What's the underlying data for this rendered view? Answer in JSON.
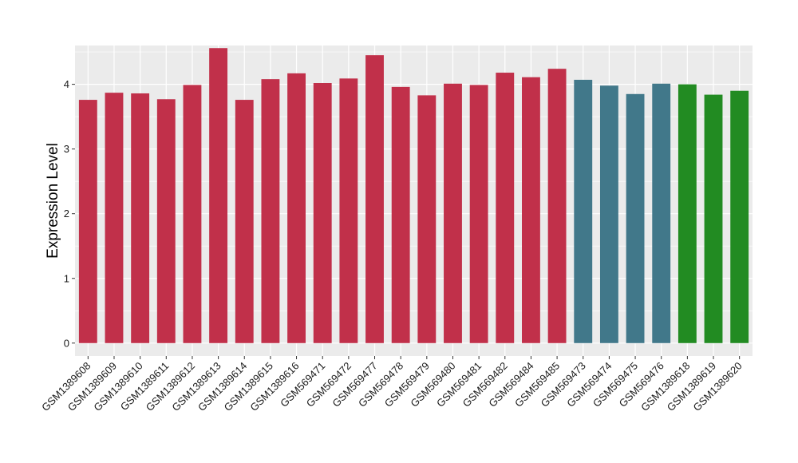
{
  "chart_data": {
    "type": "bar",
    "title": "",
    "xlabel": "",
    "ylabel": "Expression Level",
    "ylim": [
      -0.2,
      4.6
    ],
    "yticks": [
      0,
      1,
      2,
      3,
      4
    ],
    "grid": true,
    "legend": "none",
    "background": "#ebebeb",
    "gridline_color": "#ffffff",
    "categories": [
      "GSM1389608",
      "GSM1389609",
      "GSM1389610",
      "GSM1389611",
      "GSM1389612",
      "GSM1389613",
      "GSM1389614",
      "GSM1389615",
      "GSM1389616",
      "GSM569471",
      "GSM569472",
      "GSM569477",
      "GSM569478",
      "GSM569479",
      "GSM569480",
      "GSM569481",
      "GSM569482",
      "GSM569484",
      "GSM569485",
      "GSM569473",
      "GSM569474",
      "GSM569475",
      "GSM569476",
      "GSM1389618",
      "GSM1389619",
      "GSM1389620"
    ],
    "values": [
      3.76,
      3.87,
      3.86,
      3.77,
      3.99,
      4.56,
      3.76,
      4.08,
      4.17,
      4.02,
      4.09,
      4.45,
      3.96,
      3.83,
      4.01,
      3.99,
      4.18,
      4.11,
      4.24,
      4.07,
      3.98,
      3.85,
      4.01,
      4.0,
      3.84,
      3.9
    ],
    "colors": [
      "#c1304a",
      "#c1304a",
      "#c1304a",
      "#c1304a",
      "#c1304a",
      "#c1304a",
      "#c1304a",
      "#c1304a",
      "#c1304a",
      "#c1304a",
      "#c1304a",
      "#c1304a",
      "#c1304a",
      "#c1304a",
      "#c1304a",
      "#c1304a",
      "#c1304a",
      "#c1304a",
      "#c1304a",
      "#41788a",
      "#41788a",
      "#41788a",
      "#41788a",
      "#228b22",
      "#228b22",
      "#228b22"
    ]
  }
}
